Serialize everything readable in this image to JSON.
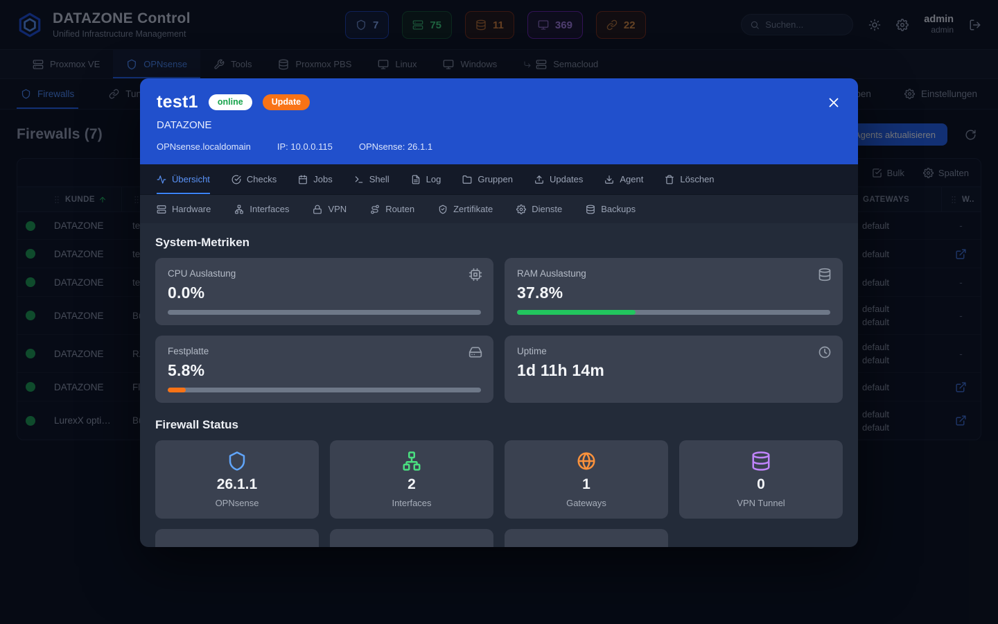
{
  "app": {
    "title": "DATAZONE Control",
    "subtitle": "Unified Infrastructure Management"
  },
  "topbar": {
    "badges": [
      {
        "icon": "shield",
        "value": "7"
      },
      {
        "icon": "server",
        "value": "75"
      },
      {
        "icon": "database",
        "value": "11"
      },
      {
        "icon": "monitor",
        "value": "369"
      },
      {
        "icon": "link",
        "value": "22"
      }
    ],
    "search_placeholder": "Suchen...",
    "user": {
      "name": "admin",
      "role": "admin"
    }
  },
  "nav": {
    "items": [
      {
        "label": "Proxmox VE",
        "icon": "server"
      },
      {
        "label": "OPNsense",
        "icon": "shield"
      },
      {
        "label": "Tools",
        "icon": "wrench"
      },
      {
        "label": "Proxmox PBS",
        "icon": "database"
      },
      {
        "label": "Linux",
        "icon": "monitor"
      },
      {
        "label": "Windows",
        "icon": "monitor"
      },
      {
        "label": "Semacloud",
        "icon": "server"
      }
    ]
  },
  "subnav": {
    "left": [
      {
        "label": "Firewalls",
        "icon": "shield"
      },
      {
        "label": "Tunnels",
        "icon": "link"
      }
    ],
    "right": [
      {
        "label": "Gruppen",
        "icon": "folder"
      },
      {
        "label": "Einstellungen",
        "icon": "gear"
      }
    ]
  },
  "page": {
    "heading": "Firewalls (7)",
    "agents_button": "Agents aktualisieren",
    "toolbar": {
      "bulk": "Bulk",
      "columns": "Spalten"
    },
    "table": {
      "columns": {
        "kunde": "KUNDE",
        "gateways": "GATEWAYS",
        "web": "W.."
      },
      "rows": [
        {
          "status": "online",
          "kunde": "DATAZONE",
          "name_fragment": "te",
          "gateways": [
            "default"
          ],
          "web": "-"
        },
        {
          "status": "online",
          "kunde": "DATAZONE",
          "name_fragment": "te",
          "gateways": [
            "default"
          ],
          "web": "link"
        },
        {
          "status": "online",
          "kunde": "DATAZONE",
          "name_fragment": "te",
          "gateways": [
            "default"
          ],
          "web": "-"
        },
        {
          "status": "online",
          "kunde": "DATAZONE",
          "name_fragment": "Bü",
          "gateways": [
            "default",
            "default"
          ],
          "web": "-"
        },
        {
          "status": "online",
          "kunde": "DATAZONE",
          "name_fragment": "RZ",
          "gateways": [
            "default",
            "default"
          ],
          "web": "-"
        },
        {
          "status": "online",
          "kunde": "DATAZONE",
          "name_fragment": "Fl",
          "gateways": [
            "default"
          ],
          "web": "link"
        },
        {
          "status": "online",
          "kunde": "LurexX opti…",
          "name_fragment": "Bü",
          "gateways": [
            "default",
            "default"
          ],
          "web": "link"
        }
      ]
    }
  },
  "modal": {
    "title": "test1",
    "status_badge": "online",
    "update_badge": "Update",
    "customer": "DATAZONE",
    "hostname": "OPNsense.localdomain",
    "ip_label": "IP: 10.0.0.115",
    "version_label": "OPNsense: 26.1.1",
    "tabs": [
      {
        "label": "Übersicht",
        "icon": "activity"
      },
      {
        "label": "Checks",
        "icon": "check-circle"
      },
      {
        "label": "Jobs",
        "icon": "calendar"
      },
      {
        "label": "Shell",
        "icon": "terminal"
      },
      {
        "label": "Log",
        "icon": "file-text"
      },
      {
        "label": "Gruppen",
        "icon": "folder"
      },
      {
        "label": "Updates",
        "icon": "upload"
      },
      {
        "label": "Agent",
        "icon": "download"
      },
      {
        "label": "Löschen",
        "icon": "trash"
      }
    ],
    "subtabs": [
      {
        "label": "Hardware",
        "icon": "server"
      },
      {
        "label": "Interfaces",
        "icon": "network"
      },
      {
        "label": "VPN",
        "icon": "lock"
      },
      {
        "label": "Routen",
        "icon": "route"
      },
      {
        "label": "Zertifikate",
        "icon": "shield-check"
      },
      {
        "label": "Dienste",
        "icon": "gear"
      },
      {
        "label": "Backups",
        "icon": "database"
      }
    ],
    "metrics_heading": "System-Metriken",
    "metrics": [
      {
        "label": "CPU Auslastung",
        "value": "0.0%",
        "icon": "cpu",
        "percent": 0,
        "bar_color": "#22c55e"
      },
      {
        "label": "RAM Auslastung",
        "value": "37.8%",
        "icon": "database",
        "percent": 37.8,
        "bar_color": "#22c55e"
      },
      {
        "label": "Festplatte",
        "value": "5.8%",
        "icon": "harddrive",
        "percent": 5.8,
        "bar_color": "#f97316"
      },
      {
        "label": "Uptime",
        "value": "1d 11h 14m",
        "icon": "clock"
      }
    ],
    "status_heading": "Firewall Status",
    "status_cards": [
      {
        "value": "26.1.1",
        "label": "OPNsense",
        "icon": "shield",
        "color": "#60a5fa"
      },
      {
        "value": "2",
        "label": "Interfaces",
        "icon": "network",
        "color": "#4ade80"
      },
      {
        "value": "1",
        "label": "Gateways",
        "icon": "globe",
        "color": "#fb923c"
      },
      {
        "value": "0",
        "label": "VPN Tunnel",
        "icon": "database",
        "color": "#c084fc"
      }
    ],
    "status_cards_row2": [
      {
        "icon": "shield",
        "color": "#2dd4bf"
      },
      {
        "icon": "check-circle",
        "color": "#2dd4bf"
      },
      {
        "icon": "activity",
        "color": "#2dd4bf"
      }
    ]
  },
  "colors": {
    "accent": "#2563eb",
    "modal_header_blue": "#2150cc",
    "online_green": "#16a34a",
    "update_orange": "#f97316",
    "status_dot_green": "#1d9d4c"
  }
}
